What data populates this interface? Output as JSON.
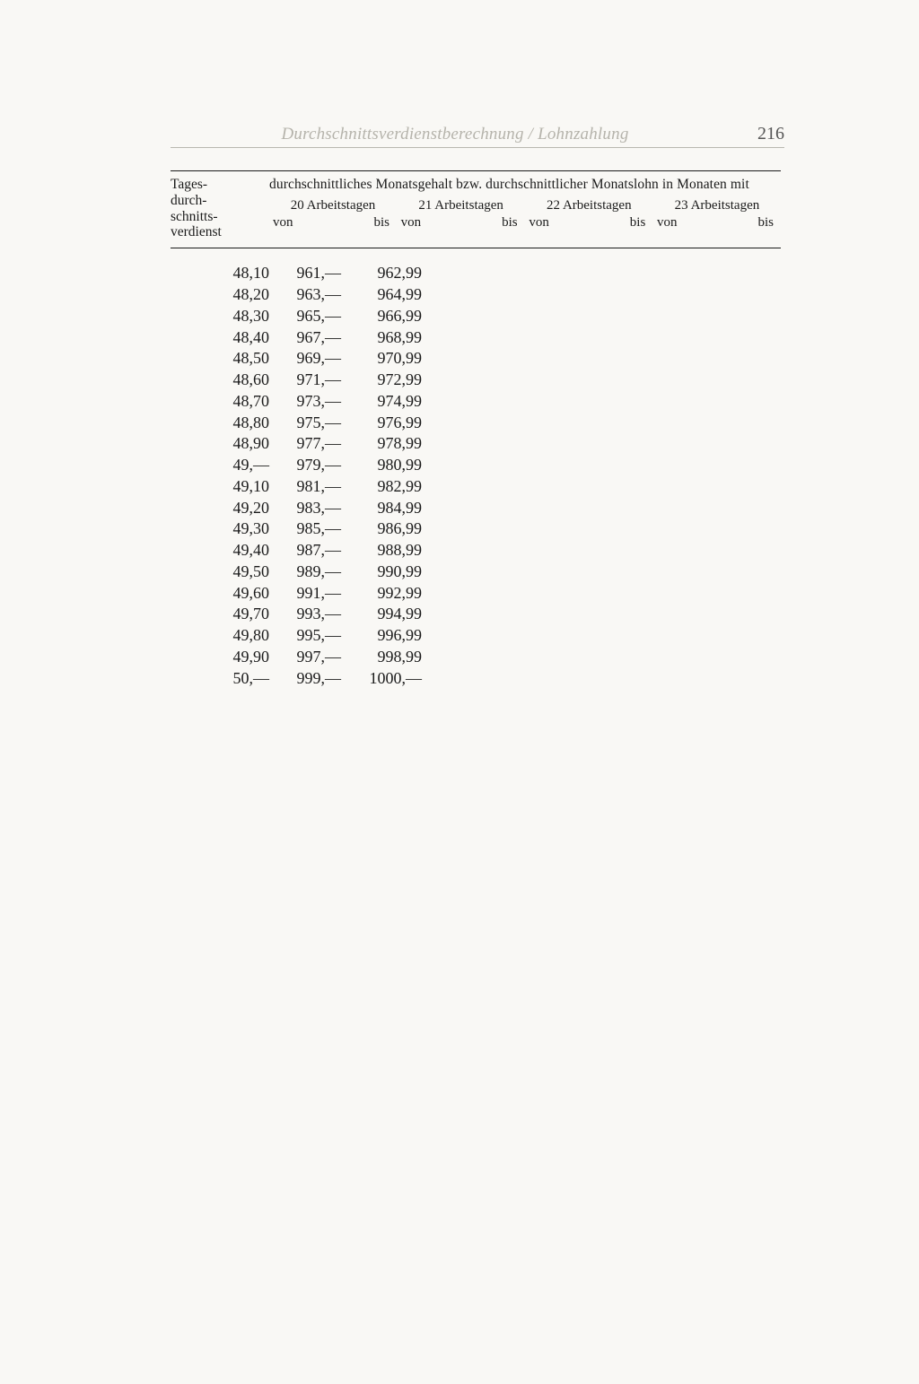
{
  "page": {
    "running_title": "Durchschnittsverdienstberechnung / Lohnzahlung",
    "number": "216"
  },
  "table": {
    "header": {
      "left_col_lines": [
        "Tages-",
        "durch-",
        "schnitts-",
        "verdienst"
      ],
      "span_title": "durchschnittliches Monatsgehalt bzw. durchschnittlicher Monatslohn in Monaten mit",
      "groups": [
        {
          "title": "20 Arbeitstagen",
          "von": "von",
          "bis": "bis"
        },
        {
          "title": "21 Arbeitstagen",
          "von": "von",
          "bis": "bis"
        },
        {
          "title": "22 Arbeitstagen",
          "von": "von",
          "bis": "bis"
        },
        {
          "title": "23 Arbeitstagen",
          "von": "von",
          "bis": "bis"
        }
      ]
    },
    "rows": [
      {
        "tages": "48,10",
        "von": "961,—",
        "bis": "962,99"
      },
      {
        "tages": "48,20",
        "von": "963,—",
        "bis": "964,99"
      },
      {
        "tages": "48,30",
        "von": "965,—",
        "bis": "966,99"
      },
      {
        "tages": "48,40",
        "von": "967,—",
        "bis": "968,99"
      },
      {
        "tages": "48,50",
        "von": "969,—",
        "bis": "970,99"
      },
      {
        "tages": "48,60",
        "von": "971,—",
        "bis": "972,99"
      },
      {
        "tages": "48,70",
        "von": "973,—",
        "bis": "974,99"
      },
      {
        "tages": "48,80",
        "von": "975,—",
        "bis": "976,99"
      },
      {
        "tages": "48,90",
        "von": "977,—",
        "bis": "978,99"
      },
      {
        "tages": "49,—",
        "von": "979,—",
        "bis": "980,99"
      },
      {
        "tages": "49,10",
        "von": "981,—",
        "bis": "982,99"
      },
      {
        "tages": "49,20",
        "von": "983,—",
        "bis": "984,99"
      },
      {
        "tages": "49,30",
        "von": "985,—",
        "bis": "986,99"
      },
      {
        "tages": "49,40",
        "von": "987,—",
        "bis": "988,99"
      },
      {
        "tages": "49,50",
        "von": "989,—",
        "bis": "990,99"
      },
      {
        "tages": "49,60",
        "von": "991,—",
        "bis": "992,99"
      },
      {
        "tages": "49,70",
        "von": "993,—",
        "bis": "994,99"
      },
      {
        "tages": "49,80",
        "von": "995,—",
        "bis": "996,99"
      },
      {
        "tages": "49,90",
        "von": "997,—",
        "bis": "998,99"
      },
      {
        "tages": "50,—",
        "von": "999,—",
        "bis": "1000,—"
      }
    ]
  }
}
